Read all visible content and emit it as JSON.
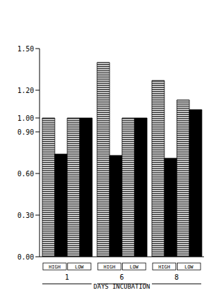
{
  "chart_data": {
    "type": "bar",
    "categories": [
      "1",
      "6",
      "8"
    ],
    "xlabel": "DAYS INCUBATION",
    "series": [
      {
        "name": "HIGH",
        "color": "#000000",
        "marker": "hatched",
        "values": [
          1.0,
          1.4,
          1.27
        ]
      },
      {
        "name": "HIGH",
        "color": "#000000",
        "marker": "solid",
        "values": [
          0.74,
          0.73,
          0.71
        ]
      },
      {
        "name": "LOW",
        "color": "#000000",
        "marker": "hatched",
        "values": [
          1.0,
          1.0,
          1.13
        ]
      },
      {
        "name": "LOW",
        "color": "#000000",
        "marker": "solid",
        "values": [
          1.0,
          1.0,
          1.06
        ]
      }
    ],
    "ylim": [
      0,
      1.5
    ],
    "yticks": [
      {
        "value": 0,
        "label": "0.00"
      },
      {
        "value": 0.3,
        "label": "0.30"
      },
      {
        "value": 0.6,
        "label": "0.60"
      },
      {
        "value": 0.9,
        "label": "0.90"
      },
      {
        "value": 1.0,
        "label": "1.00"
      },
      {
        "value": 1.2,
        "label": "1.20"
      },
      {
        "value": 1.5,
        "label": "1.50"
      }
    ],
    "grid": false
  }
}
